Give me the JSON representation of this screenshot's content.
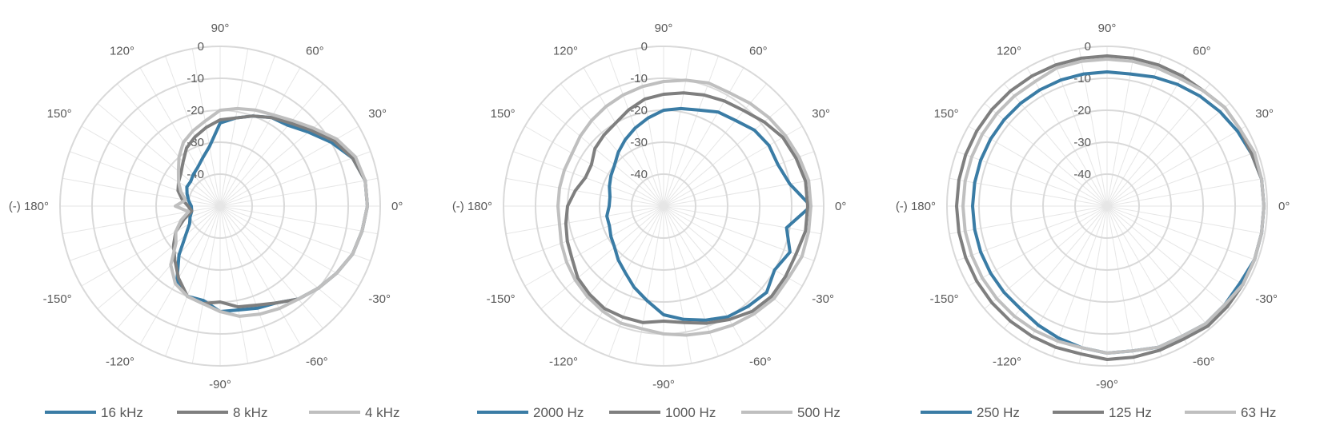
{
  "chart_data": [
    {
      "type": "polar-line",
      "rings": [
        0,
        -10,
        -20,
        -30,
        -40
      ],
      "rlim": [
        -50,
        0
      ],
      "angle_ticks": [
        "0°",
        "30°",
        "60°",
        "90°",
        "120°",
        "150°",
        "(-) 180°",
        "-150°",
        "-120°",
        "-90°",
        "-60°",
        "-30°"
      ],
      "grid": true,
      "legend_position": "bottom",
      "series": [
        {
          "name": "16 kHz",
          "color": "#3a7ca5",
          "angles": [
            0,
            10,
            20,
            30,
            40,
            50,
            60,
            70,
            80,
            90,
            100,
            110,
            120,
            130,
            140,
            150,
            160,
            170,
            180,
            -170,
            -160,
            -150,
            -140,
            -130,
            -120,
            -110,
            -100,
            -90,
            -80,
            -70,
            -60,
            -50,
            -40,
            -30,
            -20,
            -10
          ],
          "values": [
            -4,
            -4,
            -6,
            -10,
            -14,
            -17,
            -18,
            -20,
            -22,
            -24,
            -31,
            -34,
            -36,
            -37,
            -38,
            -38,
            -39,
            -40,
            -41,
            -41,
            -40,
            -39,
            -36,
            -30,
            -23,
            -20,
            -20,
            -17,
            -17,
            -16,
            -15,
            -12,
            -10,
            -8,
            -6,
            -5
          ]
        },
        {
          "name": "8 kHz",
          "color": "#7f7f7f",
          "angles": [
            0,
            10,
            20,
            30,
            40,
            50,
            60,
            70,
            80,
            90,
            100,
            110,
            120,
            130,
            140,
            150,
            160,
            170,
            180,
            -170,
            -160,
            -150,
            -140,
            -130,
            -120,
            -110,
            -100,
            -90,
            -80,
            -70,
            -60,
            -50,
            -40,
            -30,
            -20,
            -10
          ],
          "values": [
            -4,
            -4,
            -6,
            -9,
            -13,
            -16,
            -18,
            -20,
            -22,
            -23,
            -25,
            -27,
            -29,
            -32,
            -34,
            -35,
            -36,
            -38,
            -40,
            -41,
            -38,
            -34,
            -31,
            -28,
            -24,
            -20,
            -19,
            -20,
            -18,
            -17,
            -15,
            -12,
            -10,
            -8,
            -6,
            -5
          ]
        },
        {
          "name": "4 kHz",
          "color": "#bfbfbf",
          "angles": [
            0,
            10,
            20,
            30,
            40,
            50,
            60,
            70,
            80,
            90,
            100,
            110,
            120,
            130,
            140,
            150,
            160,
            170,
            180,
            -170,
            -160,
            -150,
            -140,
            -130,
            -120,
            -110,
            -100,
            -90,
            -80,
            -70,
            -60,
            -50,
            -40,
            -30,
            -20,
            -10
          ],
          "values": [
            -4,
            -4,
            -5,
            -8,
            -12,
            -15,
            -17,
            -18,
            -19,
            -20,
            -23,
            -25,
            -27,
            -30,
            -33,
            -35,
            -37,
            -39,
            -36,
            -40,
            -37,
            -34,
            -32,
            -26,
            -22,
            -20,
            -19,
            -17,
            -15,
            -14,
            -13,
            -12,
            -10,
            -8,
            -6,
            -5
          ]
        }
      ]
    },
    {
      "type": "polar-line",
      "rings": [
        0,
        -10,
        -20,
        -30,
        -40
      ],
      "rlim": [
        -50,
        0
      ],
      "angle_ticks": [
        "0°",
        "30°",
        "60°",
        "90°",
        "120°",
        "150°",
        "(-) 180°",
        "-150°",
        "-120°",
        "-90°",
        "-60°",
        "-30°"
      ],
      "grid": true,
      "legend_position": "bottom",
      "series": [
        {
          "name": "2000 Hz",
          "color": "#3a7ca5",
          "angles": [
            0,
            10,
            20,
            30,
            40,
            50,
            60,
            70,
            80,
            90,
            100,
            110,
            120,
            130,
            140,
            150,
            160,
            170,
            180,
            -170,
            -160,
            -150,
            -140,
            -130,
            -120,
            -110,
            -100,
            -90,
            -80,
            -70,
            -60,
            -50,
            -40,
            -30,
            -20,
            -10
          ],
          "values": [
            -4,
            -10,
            -12,
            -12,
            -13,
            -15,
            -16,
            -18,
            -19,
            -20,
            -22,
            -24,
            -26,
            -28,
            -30,
            -31,
            -32,
            -33,
            -33,
            -32,
            -32,
            -31,
            -30,
            -28,
            -26,
            -23,
            -20,
            -16,
            -14,
            -12,
            -10,
            -9,
            -8,
            -10,
            -8,
            -11
          ]
        },
        {
          "name": "1000 Hz",
          "color": "#7f7f7f",
          "angles": [
            0,
            10,
            20,
            30,
            40,
            50,
            60,
            70,
            80,
            90,
            100,
            110,
            120,
            130,
            140,
            150,
            160,
            170,
            180,
            -170,
            -160,
            -150,
            -140,
            -130,
            -120,
            -110,
            -100,
            -90,
            -80,
            -70,
            -60,
            -50,
            -40,
            -30,
            -20,
            -10
          ],
          "values": [
            -5,
            -5,
            -6,
            -7,
            -9,
            -11,
            -12,
            -13,
            -14,
            -15,
            -16,
            -18,
            -20,
            -21,
            -22,
            -24,
            -24,
            -22,
            -20,
            -19,
            -18,
            -17,
            -15,
            -14,
            -13,
            -13,
            -13,
            -14,
            -13,
            -11,
            -9,
            -7,
            -6,
            -6,
            -6,
            -5
          ]
        },
        {
          "name": "500 Hz",
          "color": "#bfbfbf",
          "angles": [
            0,
            10,
            20,
            30,
            40,
            50,
            60,
            70,
            80,
            90,
            100,
            110,
            120,
            130,
            140,
            150,
            160,
            170,
            180,
            -170,
            -160,
            -150,
            -140,
            -130,
            -120,
            -110,
            -100,
            -90,
            -80,
            -70,
            -60,
            -50,
            -40,
            -30,
            -20,
            -10
          ],
          "values": [
            -4,
            -4,
            -5,
            -6,
            -7,
            -8,
            -9,
            -9,
            -10,
            -11,
            -12,
            -13,
            -14,
            -15,
            -16,
            -17,
            -17,
            -17,
            -17,
            -17,
            -16,
            -15,
            -14,
            -13,
            -12,
            -11,
            -11,
            -10,
            -9,
            -8,
            -7,
            -6,
            -5,
            -5,
            -4,
            -4
          ]
        }
      ]
    },
    {
      "type": "polar-line",
      "rings": [
        0,
        -10,
        -20,
        -30,
        -40
      ],
      "rlim": [
        -50,
        0
      ],
      "angle_ticks": [
        "0°",
        "30°",
        "60°",
        "90°",
        "120°",
        "150°",
        "(-) 180°",
        "-150°",
        "-120°",
        "-90°",
        "-60°",
        "-30°"
      ],
      "grid": true,
      "legend_position": "bottom",
      "series": [
        {
          "name": "250 Hz",
          "color": "#3a7ca5",
          "angles": [
            0,
            10,
            20,
            30,
            40,
            50,
            60,
            70,
            80,
            90,
            100,
            110,
            120,
            130,
            140,
            150,
            160,
            170,
            180,
            -170,
            -160,
            -150,
            -140,
            -130,
            -120,
            -110,
            -100,
            -90,
            -80,
            -70,
            -60,
            -50,
            -40,
            -30,
            -20,
            -10
          ],
          "values": [
            -1,
            -1,
            -2,
            -3,
            -4,
            -5,
            -6,
            -7,
            -8,
            -8,
            -8,
            -8,
            -8,
            -8,
            -8,
            -8,
            -8,
            -8,
            -8,
            -8,
            -8,
            -8,
            -8,
            -8,
            -7,
            -6,
            -5,
            -4,
            -4,
            -3,
            -3,
            -2,
            -2,
            -2,
            -1,
            -1
          ]
        },
        {
          "name": "125 Hz",
          "color": "#7f7f7f",
          "angles": [
            0,
            10,
            20,
            30,
            40,
            50,
            60,
            70,
            80,
            90,
            100,
            110,
            120,
            130,
            140,
            150,
            160,
            170,
            180,
            -170,
            -160,
            -150,
            -140,
            -130,
            -120,
            -110,
            -100,
            -90,
            -80,
            -70,
            -60,
            -50,
            -40,
            -30,
            -20,
            -10
          ],
          "values": [
            -1,
            -1,
            -2,
            -2,
            -2,
            -3,
            -3,
            -3,
            -3,
            -3,
            -3,
            -3,
            -3,
            -3,
            -3,
            -3,
            -3,
            -3,
            -3,
            -3,
            -3,
            -3,
            -3,
            -3,
            -3,
            -3,
            -3,
            -2,
            -2,
            -2,
            -2,
            -1,
            -1,
            -1,
            -1,
            -1
          ]
        },
        {
          "name": "63 Hz",
          "color": "#bfbfbf",
          "angles": [
            0,
            10,
            20,
            30,
            40,
            50,
            60,
            70,
            80,
            90,
            100,
            110,
            120,
            130,
            140,
            150,
            160,
            170,
            180,
            -170,
            -160,
            -150,
            -140,
            -130,
            -120,
            -110,
            -100,
            -90,
            -80,
            -70,
            -60,
            -50,
            -40,
            -30,
            -20,
            -10
          ],
          "values": [
            -1,
            -1,
            -1,
            -2,
            -2,
            -3,
            -4,
            -4,
            -4,
            -4,
            -4,
            -4,
            -5,
            -5,
            -5,
            -5,
            -5,
            -5,
            -5,
            -5,
            -5,
            -5,
            -5,
            -5,
            -5,
            -5,
            -5,
            -4,
            -4,
            -3,
            -3,
            -2,
            -2,
            -1,
            -1,
            -1
          ]
        }
      ]
    }
  ]
}
